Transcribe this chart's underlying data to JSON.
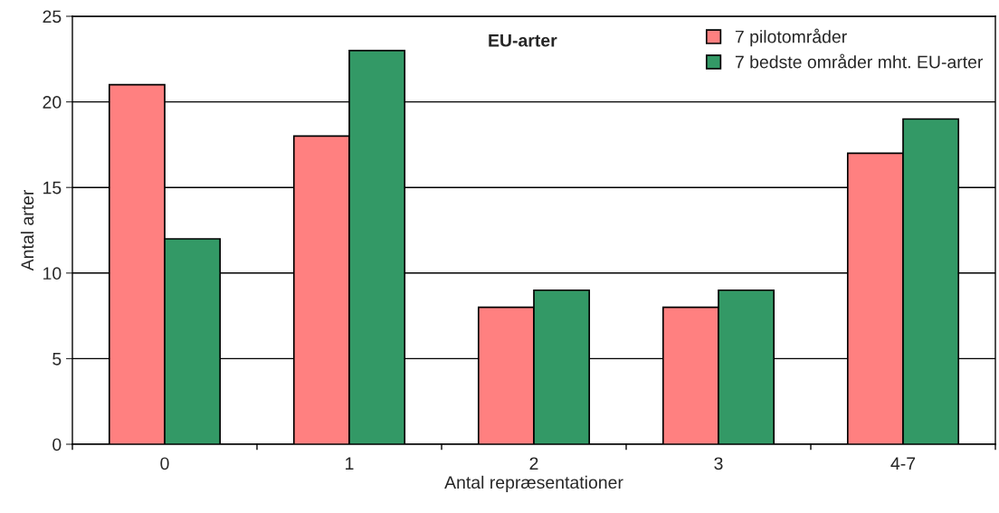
{
  "chart_data": {
    "type": "bar",
    "title": "EU-arter",
    "xlabel": "Antal repræsentationer",
    "ylabel": "Antal arter",
    "categories": [
      "0",
      "1",
      "2",
      "3",
      "4-7"
    ],
    "series": [
      {
        "name": "7 pilotområder",
        "color": "#ff8080",
        "values": [
          21,
          18,
          8,
          8,
          17
        ]
      },
      {
        "name": "7 bedste områder mht. EU-arter",
        "color": "#339966",
        "values": [
          12,
          23,
          9,
          9,
          19
        ]
      }
    ],
    "ylim": [
      0,
      25
    ],
    "yticks": [
      0,
      5,
      10,
      15,
      20,
      25
    ],
    "grid": "y",
    "legend": "top right"
  }
}
